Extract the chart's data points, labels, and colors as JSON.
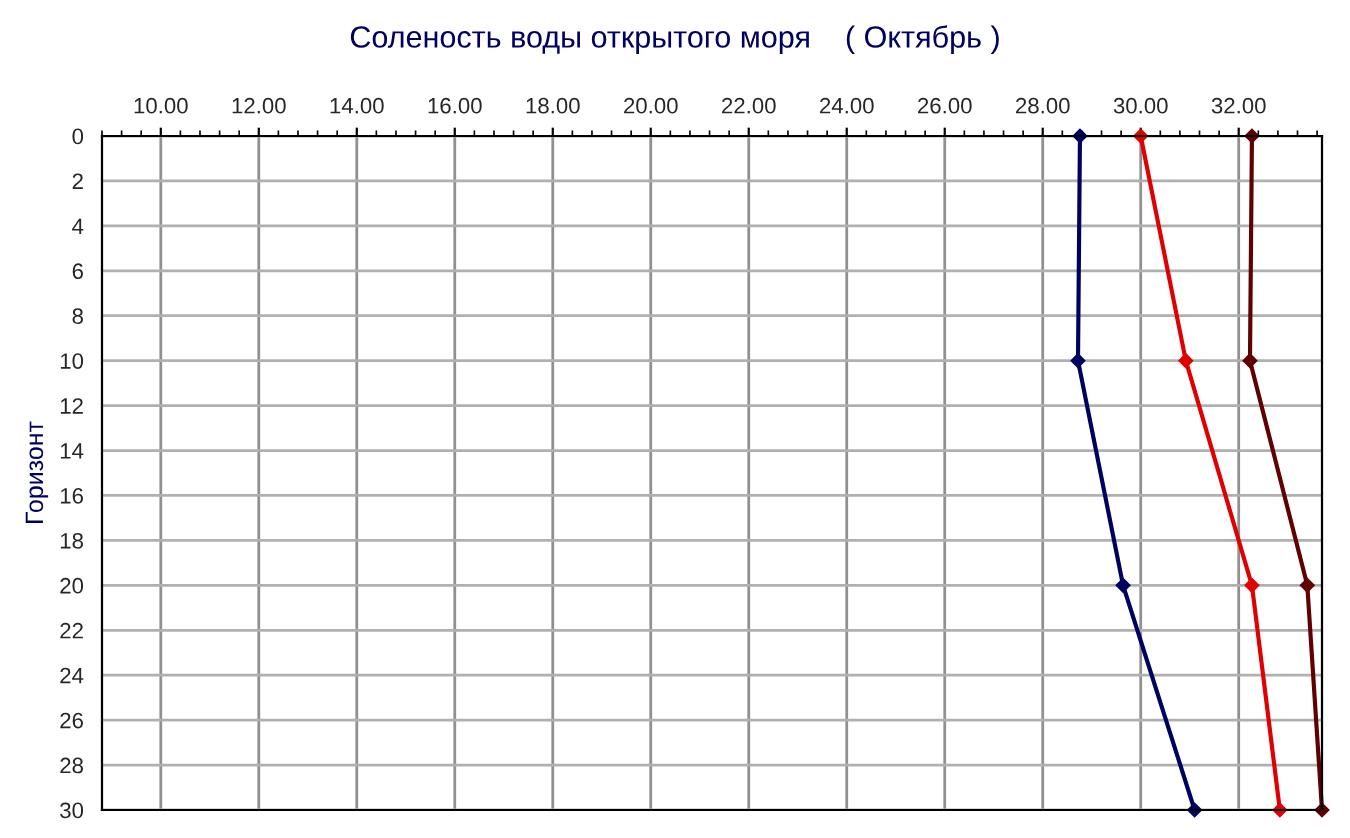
{
  "chart_data": {
    "type": "line",
    "title": "Соленость воды открытого моря    ( Октябрь )",
    "ylabel": "Горизонт",
    "xlim": [
      8.8,
      33.7
    ],
    "xticks": [
      {
        "value": 10,
        "label": "10.00"
      },
      {
        "value": 12,
        "label": "12.00"
      },
      {
        "value": 14,
        "label": "14.00"
      },
      {
        "value": 16,
        "label": "16.00"
      },
      {
        "value": 18,
        "label": "18.00"
      },
      {
        "value": 20,
        "label": "20.00"
      },
      {
        "value": 22,
        "label": "22.00"
      },
      {
        "value": 24,
        "label": "24.00"
      },
      {
        "value": 26,
        "label": "26.00"
      },
      {
        "value": 28,
        "label": "28.00"
      },
      {
        "value": 30,
        "label": "30.00"
      },
      {
        "value": 32,
        "label": "32.00"
      }
    ],
    "ylim": [
      30,
      0
    ],
    "yticks": [
      0,
      2,
      4,
      6,
      8,
      10,
      12,
      14,
      16,
      18,
      20,
      22,
      24,
      26,
      28,
      30
    ],
    "grid": true,
    "marker": "diamond",
    "line_style": "solid",
    "series": [
      {
        "color": "#000060",
        "x": [
          28.76,
          28.72,
          29.64,
          31.1
        ],
        "values": [
          0,
          10,
          20,
          30
        ]
      },
      {
        "color": "#e00000",
        "x": [
          30.0,
          30.92,
          32.27,
          32.84
        ],
        "values": [
          0,
          10,
          20,
          30
        ]
      },
      {
        "color": "#600000",
        "x": [
          32.27,
          32.23,
          33.4,
          33.7
        ],
        "values": [
          0,
          10,
          20,
          30
        ]
      }
    ]
  }
}
